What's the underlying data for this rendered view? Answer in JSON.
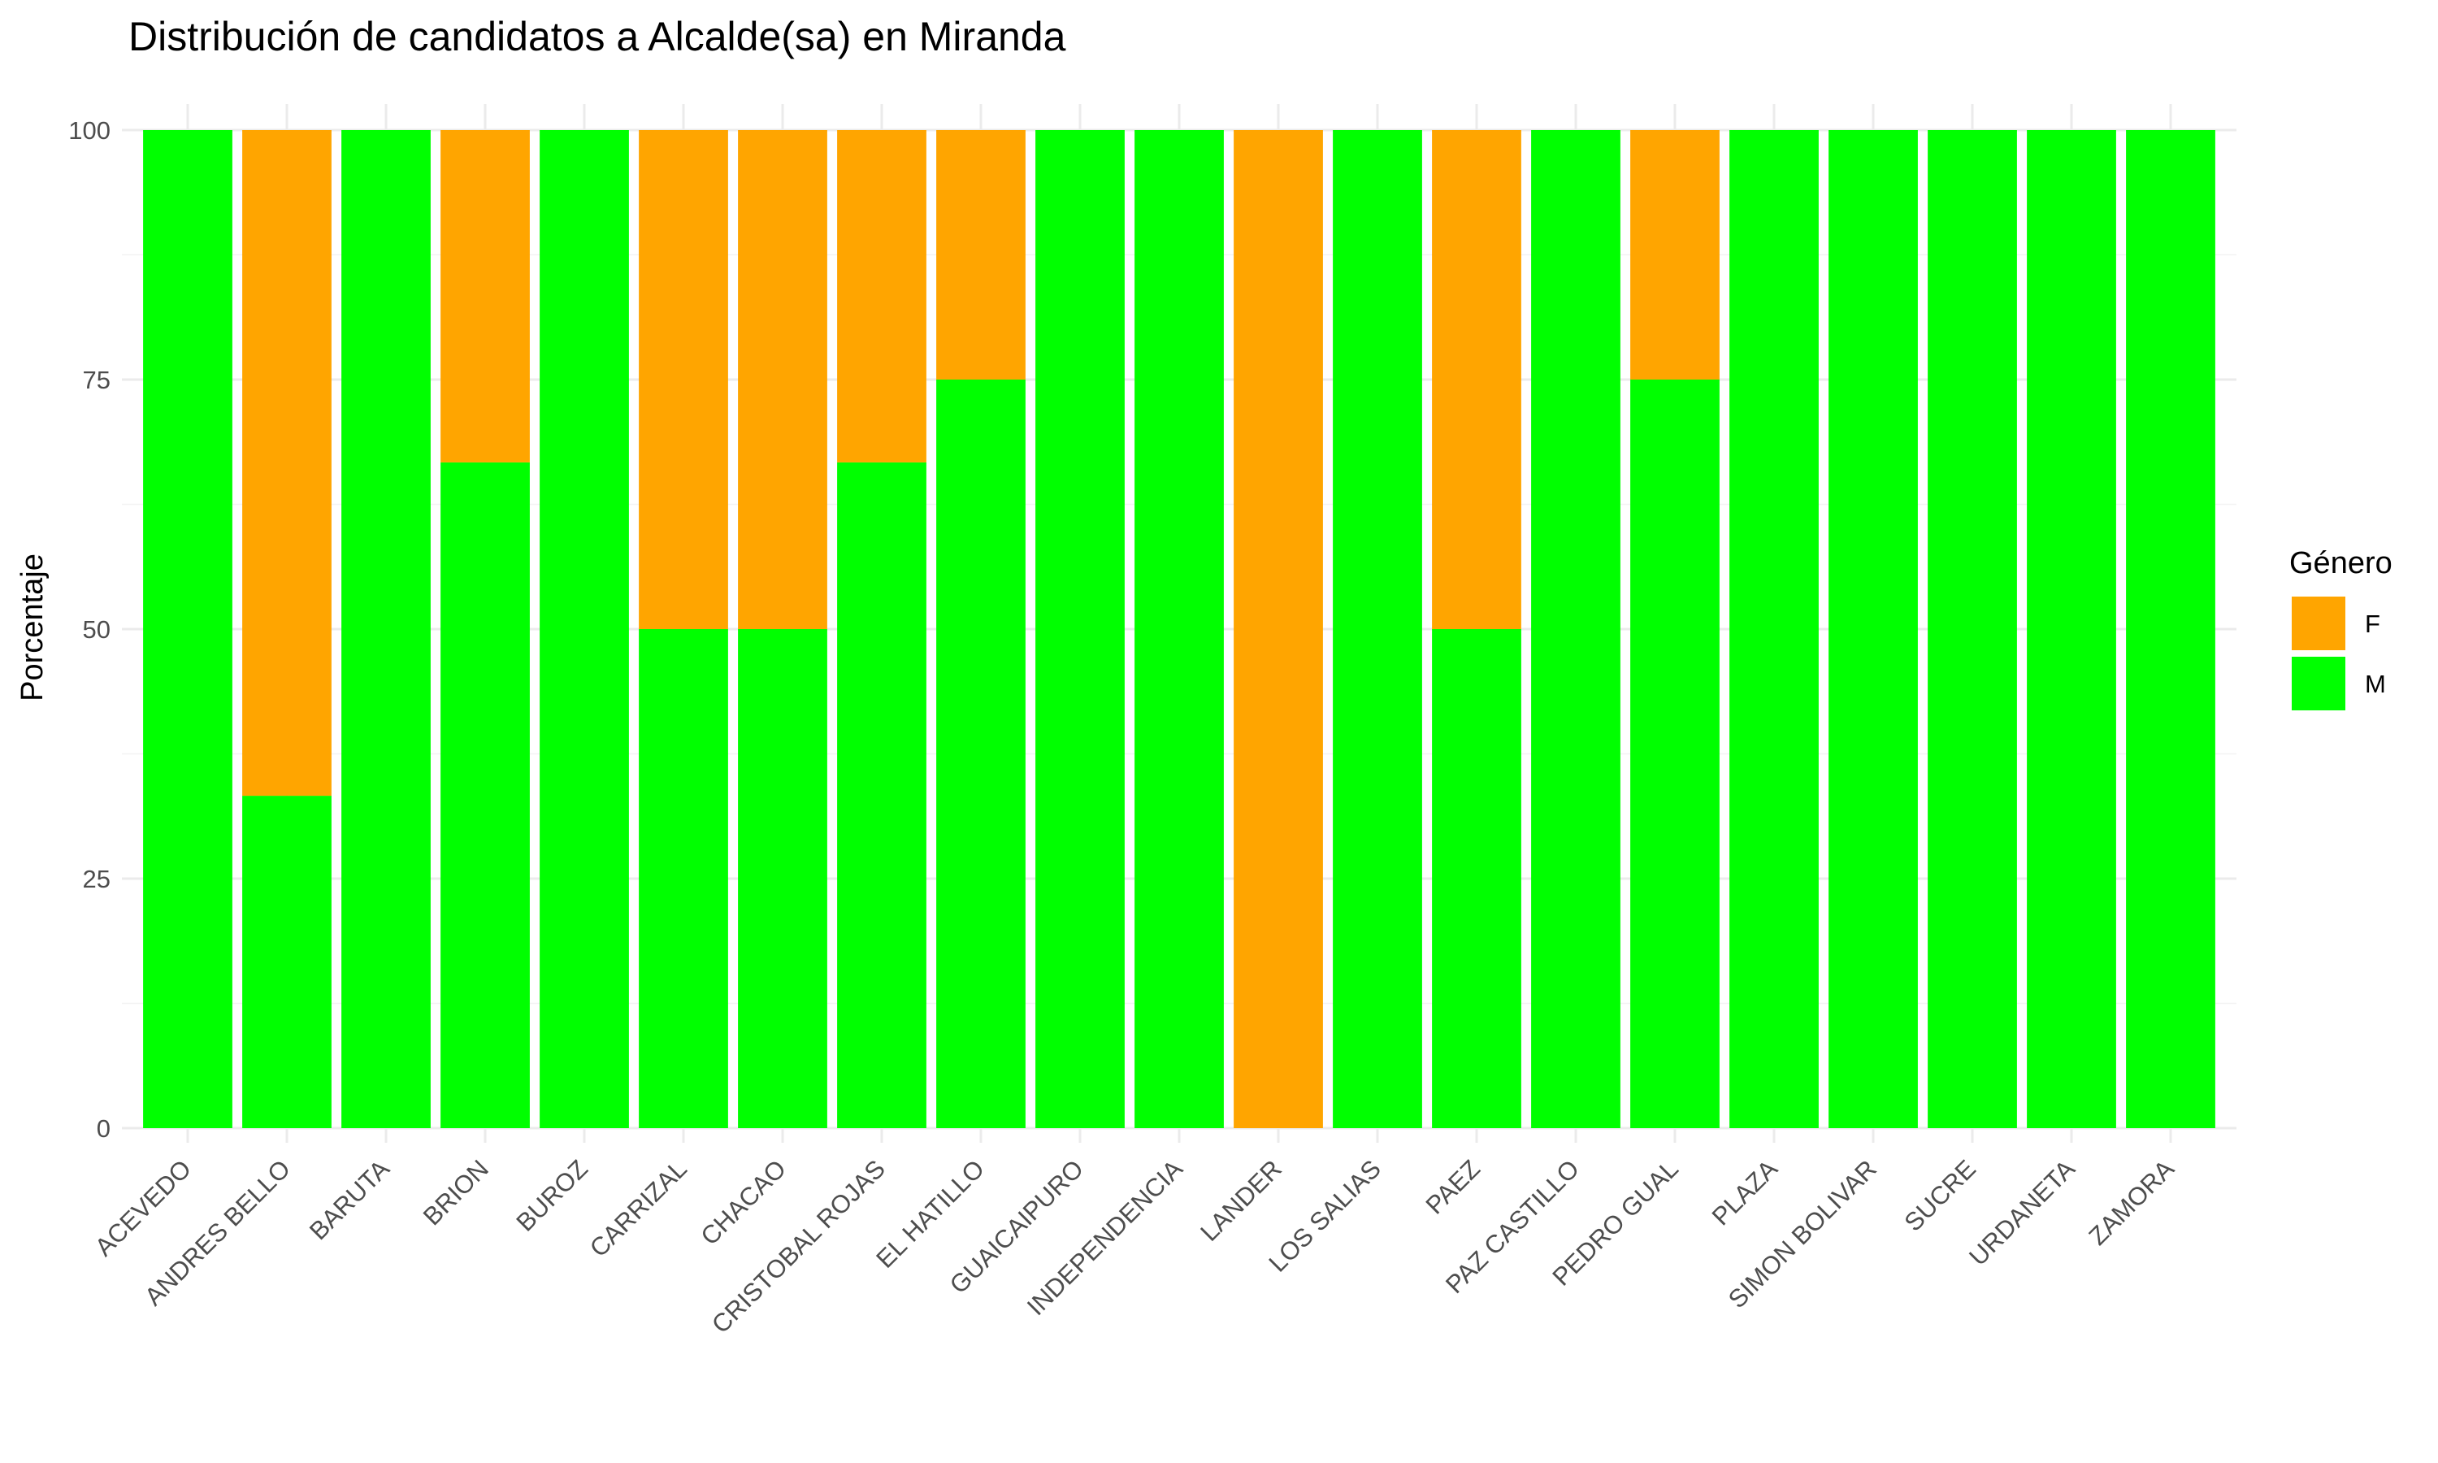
{
  "chart_data": {
    "type": "bar",
    "stacked": true,
    "title": "Distribución de candidatos a Alcalde(sa) en Miranda",
    "xlabel": "",
    "ylabel": "Porcentaje",
    "ylim": [
      0,
      100
    ],
    "yticks": [
      0,
      25,
      50,
      75,
      100
    ],
    "grid": true,
    "legend": {
      "title": "Género",
      "position": "right"
    },
    "categories": [
      "ACEVEDO",
      "ANDRES BELLO",
      "BARUTA",
      "BRION",
      "BUROZ",
      "CARRIZAL",
      "CHACAO",
      "CRISTOBAL ROJAS",
      "EL HATILLO",
      "GUAICAIPURO",
      "INDEPENDENCIA",
      "LANDER",
      "LOS SALIAS",
      "PAEZ",
      "PAZ CASTILLO",
      "PEDRO GUAL",
      "PLAZA",
      "SIMON BOLIVAR",
      "SUCRE",
      "URDANETA",
      "ZAMORA"
    ],
    "series": [
      {
        "name": "F",
        "color": "#FFA500",
        "values": [
          0,
          66.7,
          0,
          33.3,
          0,
          50,
          50,
          33.3,
          25,
          0,
          0,
          100,
          0,
          50,
          0,
          25,
          0,
          0,
          0,
          0,
          0
        ]
      },
      {
        "name": "M",
        "color": "#00FF00",
        "values": [
          100,
          33.3,
          100,
          66.7,
          100,
          50,
          50,
          66.7,
          75,
          100,
          100,
          0,
          100,
          50,
          100,
          75,
          100,
          100,
          100,
          100,
          100
        ]
      }
    ]
  }
}
